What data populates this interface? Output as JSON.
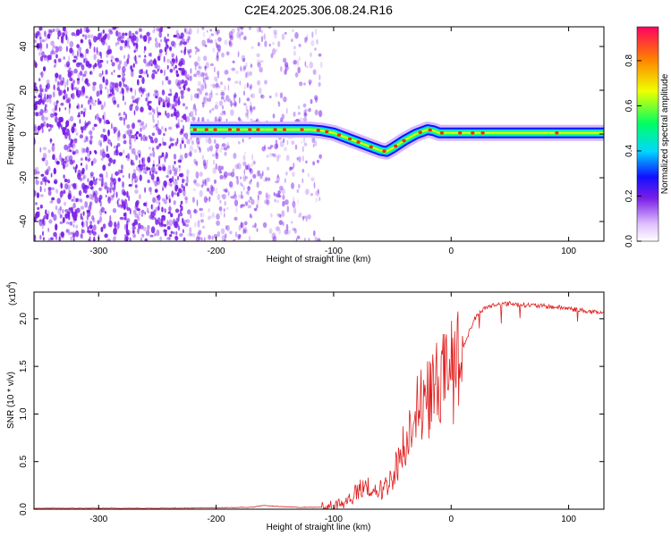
{
  "figure_title": "C2E4.2025.306.08.24.R16",
  "colors": {
    "snr_line": "#e02020",
    "ridge_core": "#ff2a10",
    "scatter": "#7a1ee8",
    "frame": "#000000"
  },
  "chart_data": [
    {
      "type": "heatmap",
      "title": "C2E4.2025.306.08.24.R16",
      "xlabel": "Height of straight line (km)",
      "ylabel": "Frequency (Hz)",
      "xlim": [
        -355,
        130
      ],
      "ylim": [
        -49,
        49
      ],
      "x_ticks": [
        -300,
        -200,
        -100,
        0,
        100
      ],
      "y_ticks": [
        -40,
        -20,
        0,
        20,
        40
      ],
      "grid": false,
      "colorbar": {
        "label": "Normalized spectral amplitude",
        "range": [
          0.0,
          0.95
        ],
        "ticks": [
          0.0,
          0.2,
          0.4,
          0.6,
          0.8
        ],
        "tick_labels": [
          "0.0",
          "0.2",
          "0.4",
          "0.6",
          "0.8"
        ]
      },
      "ridge": {
        "description": "frequency of the spectral peak vs height",
        "x": [
          -222,
          -200,
          -180,
          -160,
          -140,
          -120,
          -110,
          -100,
          -90,
          -80,
          -70,
          -60,
          -55,
          -50,
          -40,
          -30,
          -20,
          -15,
          -10,
          -5,
          0,
          20,
          50,
          80,
          100,
          130
        ],
        "y": [
          2,
          2,
          2,
          2,
          2,
          2,
          1.5,
          0.5,
          -1.5,
          -3.5,
          -5.5,
          -7.5,
          -8,
          -6.5,
          -3,
          0,
          2,
          1.5,
          0.5,
          0.5,
          0.5,
          0.5,
          0.5,
          0.5,
          0.5,
          0.5
        ]
      },
      "noise_regions": [
        {
          "x_range": [
            -355,
            -225
          ],
          "density": "high"
        },
        {
          "x_range": [
            -225,
            -170
          ],
          "density": "medium"
        },
        {
          "x_range": [
            -170,
            -110
          ],
          "density": "low"
        }
      ]
    },
    {
      "type": "line",
      "xlabel": "Height of straight line (km)",
      "ylabel": "SNR (10 * v/v)",
      "y_multiplier_label": "(x10",
      "y_multiplier_exponent": "4",
      "y_multiplier_suffix": ")",
      "xlim": [
        -355,
        130
      ],
      "ylim": [
        0.0,
        2.28
      ],
      "x_ticks": [
        -300,
        -200,
        -100,
        0,
        100
      ],
      "y_ticks": [
        0.0,
        0.5,
        1.0,
        1.5,
        2.0
      ],
      "y_tick_labels": [
        "0.0",
        "0.5",
        "1.0",
        "1.5",
        "2.0"
      ],
      "grid": false,
      "series": [
        {
          "name": "SNR",
          "x": [
            -355,
            -300,
            -250,
            -200,
            -170,
            -160,
            -150,
            -130,
            -110,
            -100,
            -95,
            -90,
            -85,
            -80,
            -75,
            -70,
            -65,
            -60,
            -55,
            -50,
            -45,
            -40,
            -35,
            -30,
            -25,
            -20,
            -15,
            -10,
            -5,
            0,
            5,
            10,
            15,
            20,
            25,
            30,
            35,
            40,
            50,
            60,
            70,
            80,
            90,
            100,
            110,
            120,
            130
          ],
          "y": [
            0.01,
            0.01,
            0.01,
            0.015,
            0.02,
            0.04,
            0.03,
            0.02,
            0.02,
            0.03,
            0.05,
            0.08,
            0.12,
            0.18,
            0.22,
            0.25,
            0.22,
            0.2,
            0.25,
            0.35,
            0.5,
            0.7,
            0.9,
            1.05,
            1.15,
            1.25,
            1.32,
            1.38,
            1.45,
            1.52,
            1.6,
            1.7,
            1.85,
            2.0,
            2.08,
            2.12,
            2.14,
            2.15,
            2.16,
            2.15,
            2.14,
            2.13,
            2.12,
            2.11,
            2.09,
            2.07,
            2.05
          ]
        }
      ]
    }
  ]
}
